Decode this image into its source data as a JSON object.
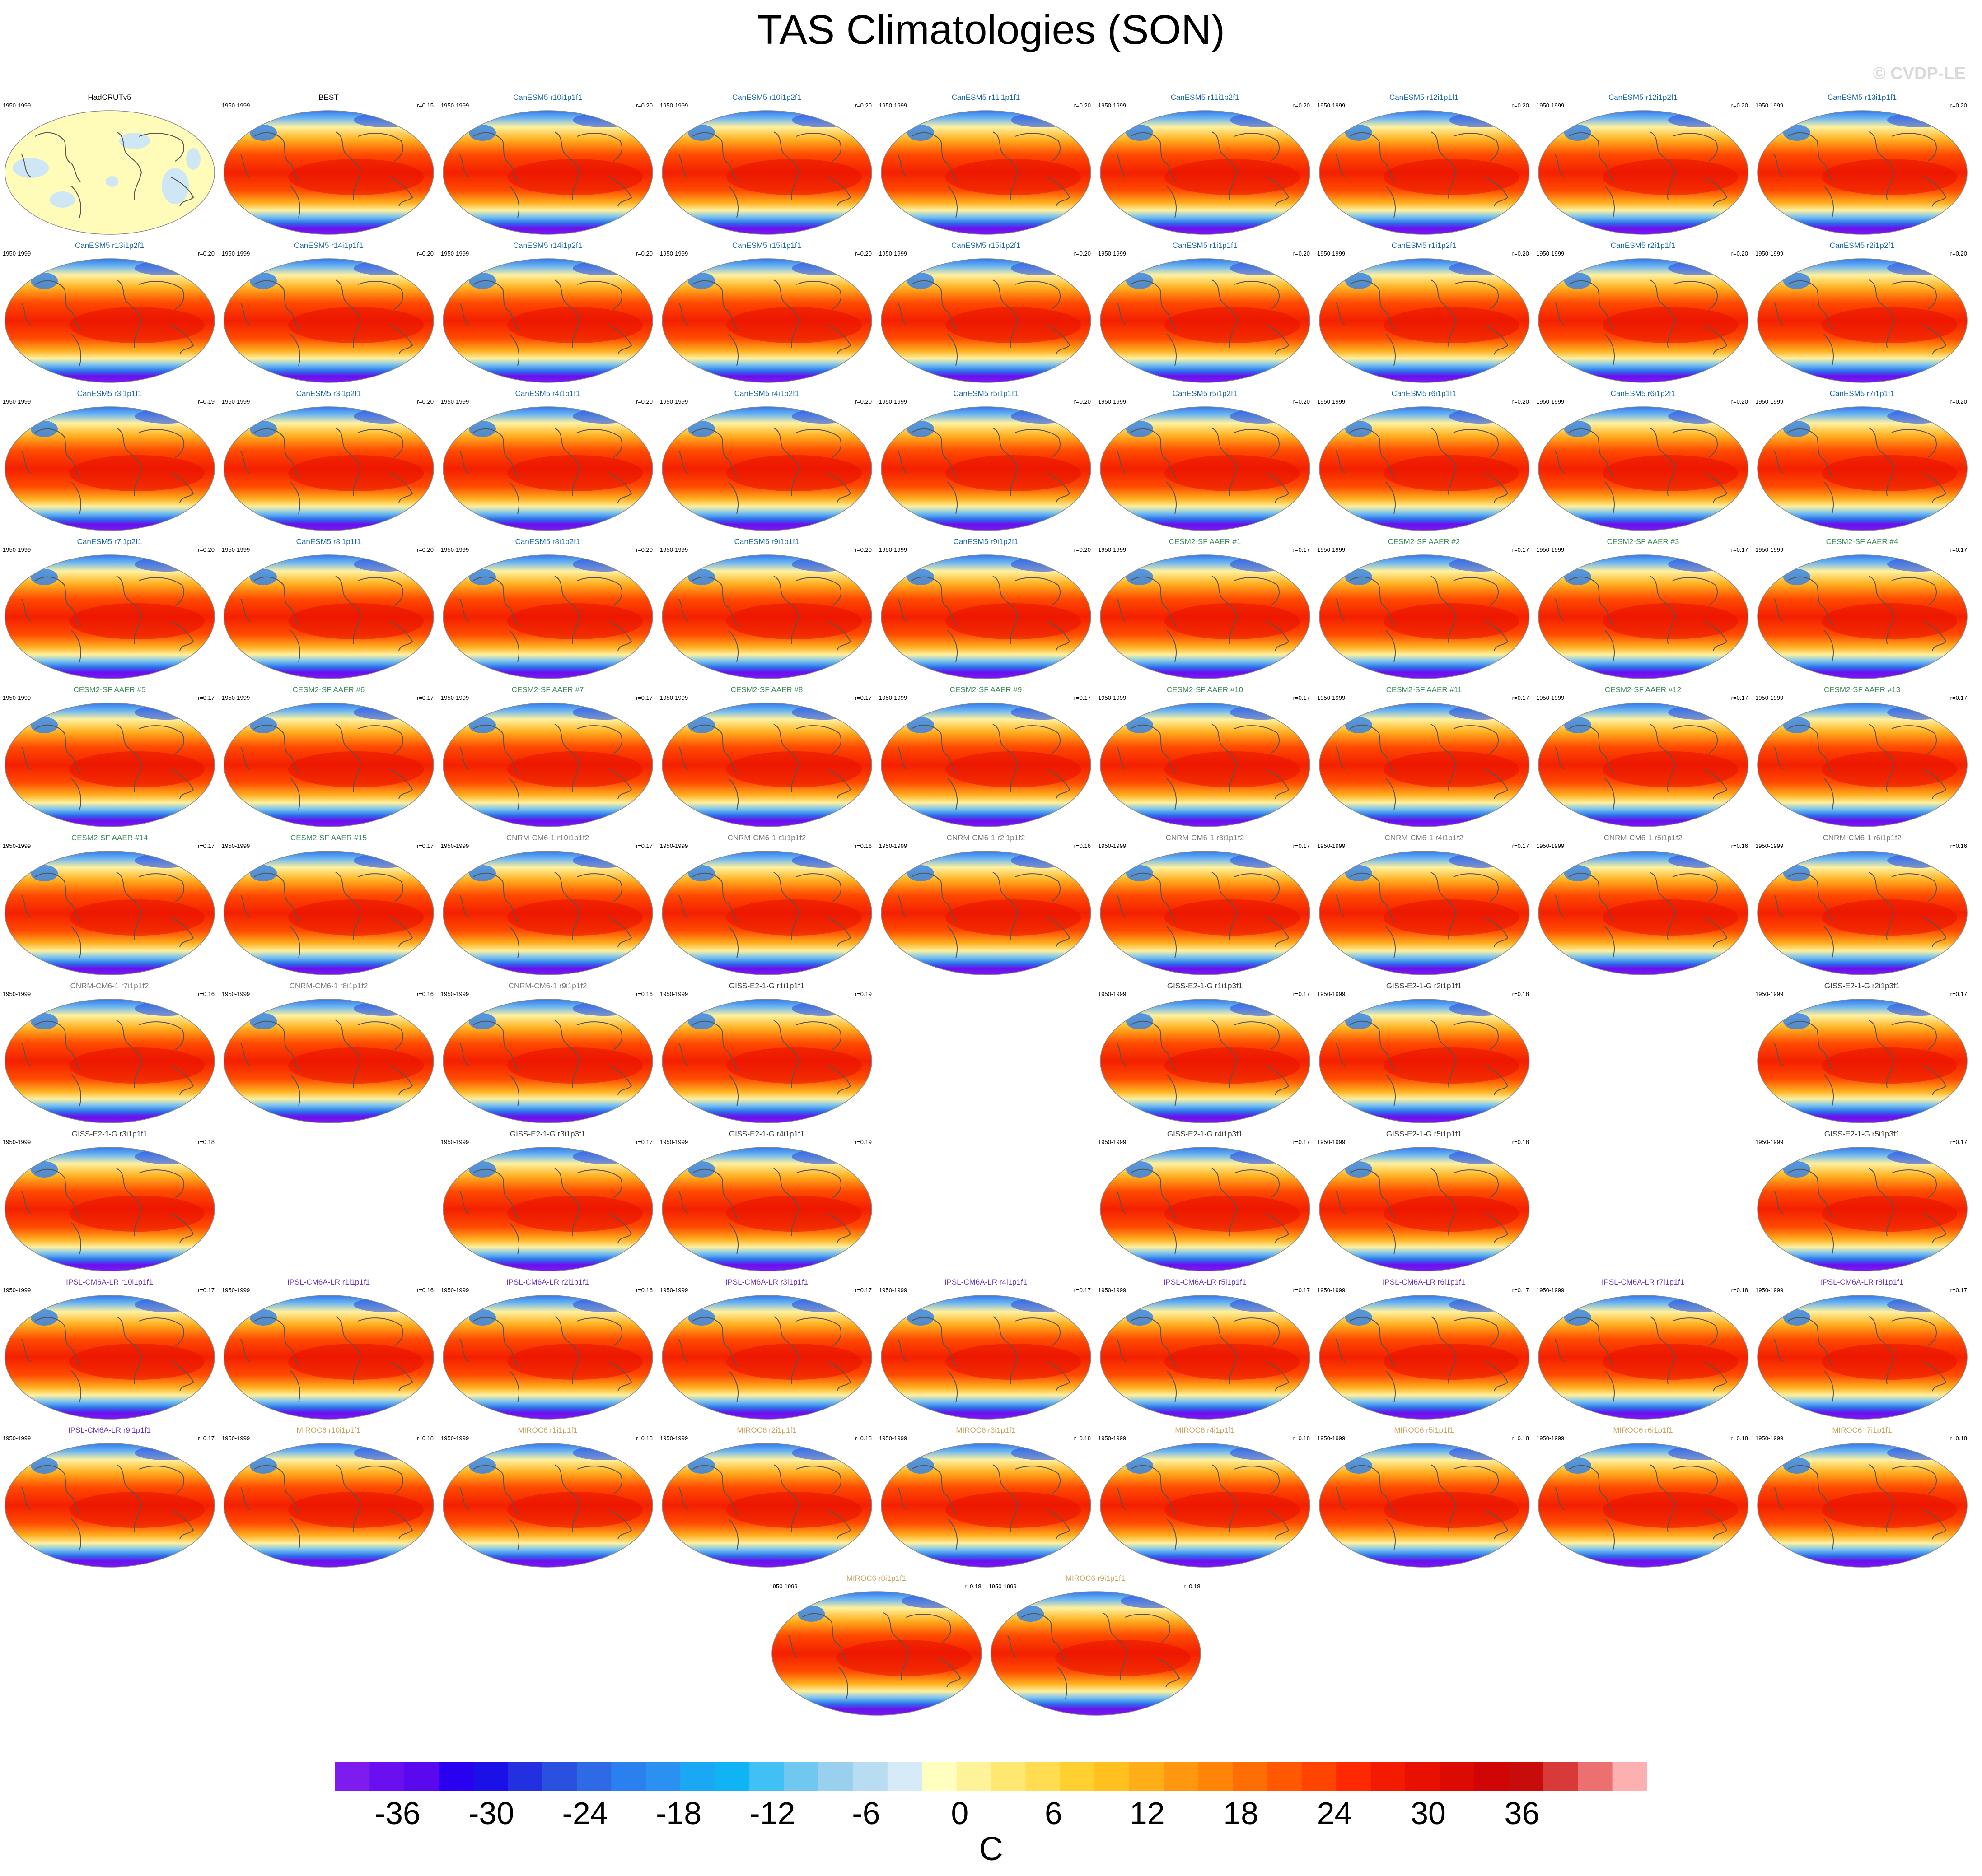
{
  "title": "TAS Climatologies (SON)",
  "watermark": "© CVDP-LE",
  "chart_data": {
    "type": "heatmap",
    "title": "TAS Climatologies (SON)",
    "projection": "robinson",
    "season": "SON",
    "period_label": "1950-1999",
    "panels": [
      {
        "name": "HadCRUTv5",
        "period": "1950-1999",
        "r": "",
        "group": "obs"
      },
      {
        "name": "BEST",
        "period": "1950-1999",
        "r": "r=0.15",
        "group": "obs"
      },
      {
        "name": "CanESM5 r10i1p1f1",
        "period": "1950-1999",
        "r": "r=0.20",
        "group": "CanESM5"
      },
      {
        "name": "CanESM5 r10i1p2f1",
        "period": "1950-1999",
        "r": "r=0.20",
        "group": "CanESM5"
      },
      {
        "name": "CanESM5 r11i1p1f1",
        "period": "1950-1999",
        "r": "r=0.20",
        "group": "CanESM5"
      },
      {
        "name": "CanESM5 r11i1p2f1",
        "period": "1950-1999",
        "r": "r=0.20",
        "group": "CanESM5"
      },
      {
        "name": "CanESM5 r12i1p1f1",
        "period": "1950-1999",
        "r": "r=0.20",
        "group": "CanESM5"
      },
      {
        "name": "CanESM5 r12i1p2f1",
        "period": "1950-1999",
        "r": "r=0.20",
        "group": "CanESM5"
      },
      {
        "name": "CanESM5 r13i1p1f1",
        "period": "1950-1999",
        "r": "r=0.20",
        "group": "CanESM5"
      },
      {
        "name": "CanESM5 r13i1p2f1",
        "period": "1950-1999",
        "r": "r=0.20",
        "group": "CanESM5"
      },
      {
        "name": "CanESM5 r14i1p1f1",
        "period": "1950-1999",
        "r": "r=0.20",
        "group": "CanESM5"
      },
      {
        "name": "CanESM5 r14i1p2f1",
        "period": "1950-1999",
        "r": "r=0.20",
        "group": "CanESM5"
      },
      {
        "name": "CanESM5 r15i1p1f1",
        "period": "1950-1999",
        "r": "r=0.20",
        "group": "CanESM5"
      },
      {
        "name": "CanESM5 r15i1p2f1",
        "period": "1950-1999",
        "r": "r=0.20",
        "group": "CanESM5"
      },
      {
        "name": "CanESM5 r1i1p1f1",
        "period": "1950-1999",
        "r": "r=0.20",
        "group": "CanESM5"
      },
      {
        "name": "CanESM5 r1i1p2f1",
        "period": "1950-1999",
        "r": "r=0.20",
        "group": "CanESM5"
      },
      {
        "name": "CanESM5 r2i1p1f1",
        "period": "1950-1999",
        "r": "r=0.20",
        "group": "CanESM5"
      },
      {
        "name": "CanESM5 r2i1p2f1",
        "period": "1950-1999",
        "r": "r=0.20",
        "group": "CanESM5"
      },
      {
        "name": "CanESM5 r3i1p1f1",
        "period": "1950-1999",
        "r": "r=0.19",
        "group": "CanESM5"
      },
      {
        "name": "CanESM5 r3i1p2f1",
        "period": "1950-1999",
        "r": "r=0.20",
        "group": "CanESM5"
      },
      {
        "name": "CanESM5 r4i1p1f1",
        "period": "1950-1999",
        "r": "r=0.20",
        "group": "CanESM5"
      },
      {
        "name": "CanESM5 r4i1p2f1",
        "period": "1950-1999",
        "r": "r=0.20",
        "group": "CanESM5"
      },
      {
        "name": "CanESM5 r5i1p1f1",
        "period": "1950-1999",
        "r": "r=0.20",
        "group": "CanESM5"
      },
      {
        "name": "CanESM5 r5i1p2f1",
        "period": "1950-1999",
        "r": "r=0.20",
        "group": "CanESM5"
      },
      {
        "name": "CanESM5 r6i1p1f1",
        "period": "1950-1999",
        "r": "r=0.20",
        "group": "CanESM5"
      },
      {
        "name": "CanESM5 r6i1p2f1",
        "period": "1950-1999",
        "r": "r=0.20",
        "group": "CanESM5"
      },
      {
        "name": "CanESM5 r7i1p1f1",
        "period": "1950-1999",
        "r": "r=0.20",
        "group": "CanESM5"
      },
      {
        "name": "CanESM5 r7i1p2f1",
        "period": "1950-1999",
        "r": "r=0.20",
        "group": "CanESM5"
      },
      {
        "name": "CanESM5 r8i1p1f1",
        "period": "1950-1999",
        "r": "r=0.20",
        "group": "CanESM5"
      },
      {
        "name": "CanESM5 r8i1p2f1",
        "period": "1950-1999",
        "r": "r=0.20",
        "group": "CanESM5"
      },
      {
        "name": "CanESM5 r9i1p1f1",
        "period": "1950-1999",
        "r": "r=0.20",
        "group": "CanESM5"
      },
      {
        "name": "CanESM5 r9i1p2f1",
        "period": "1950-1999",
        "r": "r=0.20",
        "group": "CanESM5"
      },
      {
        "name": "CESM2-SF AAER #1",
        "period": "1950-1999",
        "r": "r=0.17",
        "group": "CESM2"
      },
      {
        "name": "CESM2-SF AAER #2",
        "period": "1950-1999",
        "r": "r=0.17",
        "group": "CESM2"
      },
      {
        "name": "CESM2-SF AAER #3",
        "period": "1950-1999",
        "r": "r=0.17",
        "group": "CESM2"
      },
      {
        "name": "CESM2-SF AAER #4",
        "period": "1950-1999",
        "r": "r=0.17",
        "group": "CESM2"
      },
      {
        "name": "CESM2-SF AAER #5",
        "period": "1950-1999",
        "r": "r=0.17",
        "group": "CESM2"
      },
      {
        "name": "CESM2-SF AAER #6",
        "period": "1950-1999",
        "r": "r=0.17",
        "group": "CESM2"
      },
      {
        "name": "CESM2-SF AAER #7",
        "period": "1950-1999",
        "r": "r=0.17",
        "group": "CESM2"
      },
      {
        "name": "CESM2-SF AAER #8",
        "period": "1950-1999",
        "r": "r=0.17",
        "group": "CESM2"
      },
      {
        "name": "CESM2-SF AAER #9",
        "period": "1950-1999",
        "r": "r=0.17",
        "group": "CESM2"
      },
      {
        "name": "CESM2-SF AAER #10",
        "period": "1950-1999",
        "r": "r=0.17",
        "group": "CESM2"
      },
      {
        "name": "CESM2-SF AAER #11",
        "period": "1950-1999",
        "r": "r=0.17",
        "group": "CESM2"
      },
      {
        "name": "CESM2-SF AAER #12",
        "period": "1950-1999",
        "r": "r=0.17",
        "group": "CESM2"
      },
      {
        "name": "CESM2-SF AAER #13",
        "period": "1950-1999",
        "r": "r=0.17",
        "group": "CESM2"
      },
      {
        "name": "CESM2-SF AAER #14",
        "period": "1950-1999",
        "r": "r=0.17",
        "group": "CESM2"
      },
      {
        "name": "CESM2-SF AAER #15",
        "period": "1950-1999",
        "r": "r=0.17",
        "group": "CESM2"
      },
      {
        "name": "CNRM-CM6-1 r10i1p1f2",
        "period": "1950-1999",
        "r": "r=0.17",
        "group": "CNRM"
      },
      {
        "name": "CNRM-CM6-1 r1i1p1f2",
        "period": "1950-1999",
        "r": "r=0.16",
        "group": "CNRM"
      },
      {
        "name": "CNRM-CM6-1 r2i1p1f2",
        "period": "1950-1999",
        "r": "r=0.16",
        "group": "CNRM"
      },
      {
        "name": "CNRM-CM6-1 r3i1p1f2",
        "period": "1950-1999",
        "r": "r=0.17",
        "group": "CNRM"
      },
      {
        "name": "CNRM-CM6-1 r4i1p1f2",
        "period": "1950-1999",
        "r": "r=0.17",
        "group": "CNRM"
      },
      {
        "name": "CNRM-CM6-1 r5i1p1f2",
        "period": "1950-1999",
        "r": "r=0.16",
        "group": "CNRM"
      },
      {
        "name": "CNRM-CM6-1 r6i1p1f2",
        "period": "1950-1999",
        "r": "r=0.16",
        "group": "CNRM"
      },
      {
        "name": "CNRM-CM6-1 r7i1p1f2",
        "period": "1950-1999",
        "r": "r=0.16",
        "group": "CNRM"
      },
      {
        "name": "CNRM-CM6-1 r8i1p1f2",
        "period": "1950-1999",
        "r": "r=0.16",
        "group": "CNRM"
      },
      {
        "name": "CNRM-CM6-1 r9i1p1f2",
        "period": "1950-1999",
        "r": "r=0.16",
        "group": "CNRM"
      },
      {
        "name": "GISS-E2-1-G r1i1p1f1",
        "period": "1950-1999",
        "r": "r=0.19",
        "group": "GISS"
      },
      {
        "name": "GISS-E2-1-G r1i1p3f1",
        "period": "1950-1999",
        "r": "r=0.17",
        "group": "GISS"
      },
      {
        "name": "GISS-E2-1-G r2i1p1f1",
        "period": "1950-1999",
        "r": "r=0.18",
        "group": "GISS"
      },
      {
        "name": "GISS-E2-1-G r2i1p3f1",
        "period": "1950-1999",
        "r": "r=0.17",
        "group": "GISS"
      },
      {
        "name": "GISS-E2-1-G r3i1p1f1",
        "period": "1950-1999",
        "r": "r=0.18",
        "group": "GISS"
      },
      {
        "name": "GISS-E2-1-G r3i1p3f1",
        "period": "1950-1999",
        "r": "r=0.17",
        "group": "GISS"
      },
      {
        "name": "GISS-E2-1-G r4i1p1f1",
        "period": "1950-1999",
        "r": "r=0.19",
        "group": "GISS"
      },
      {
        "name": "GISS-E2-1-G r4i1p3f1",
        "period": "1950-1999",
        "r": "r=0.17",
        "group": "GISS"
      },
      {
        "name": "GISS-E2-1-G r5i1p1f1",
        "period": "1950-1999",
        "r": "r=0.18",
        "group": "GISS"
      },
      {
        "name": "GISS-E2-1-G r5i1p3f1",
        "period": "1950-1999",
        "r": "r=0.17",
        "group": "GISS"
      },
      {
        "name": "IPSL-CM6A-LR r10i1p1f1",
        "period": "1950-1999",
        "r": "r=0.17",
        "group": "IPSL"
      },
      {
        "name": "IPSL-CM6A-LR r1i1p1f1",
        "period": "1950-1999",
        "r": "r=0.16",
        "group": "IPSL"
      },
      {
        "name": "IPSL-CM6A-LR r2i1p1f1",
        "period": "1950-1999",
        "r": "r=0.16",
        "group": "IPSL"
      },
      {
        "name": "IPSL-CM6A-LR r3i1p1f1",
        "period": "1950-1999",
        "r": "r=0.17",
        "group": "IPSL"
      },
      {
        "name": "IPSL-CM6A-LR r4i1p1f1",
        "period": "1950-1999",
        "r": "r=0.17",
        "group": "IPSL"
      },
      {
        "name": "IPSL-CM6A-LR r5i1p1f1",
        "period": "1950-1999",
        "r": "r=0.17",
        "group": "IPSL"
      },
      {
        "name": "IPSL-CM6A-LR r6i1p1f1",
        "period": "1950-1999",
        "r": "r=0.17",
        "group": "IPSL"
      },
      {
        "name": "IPSL-CM6A-LR r7i1p1f1",
        "period": "1950-1999",
        "r": "r=0.18",
        "group": "IPSL"
      },
      {
        "name": "IPSL-CM6A-LR r8i1p1f1",
        "period": "1950-1999",
        "r": "r=0.17",
        "group": "IPSL"
      },
      {
        "name": "IPSL-CM6A-LR r9i1p1f1",
        "period": "1950-1999",
        "r": "r=0.17",
        "group": "IPSL"
      },
      {
        "name": "MIROC6 r10i1p1f1",
        "period": "1950-1999",
        "r": "r=0.18",
        "group": "MIROC"
      },
      {
        "name": "MIROC6 r1i1p1f1",
        "period": "1950-1999",
        "r": "r=0.18",
        "group": "MIROC"
      },
      {
        "name": "MIROC6 r2i1p1f1",
        "period": "1950-1999",
        "r": "r=0.18",
        "group": "MIROC"
      },
      {
        "name": "MIROC6 r3i1p1f1",
        "period": "1950-1999",
        "r": "r=0.18",
        "group": "MIROC"
      },
      {
        "name": "MIROC6 r4i1p1f1",
        "period": "1950-1999",
        "r": "r=0.18",
        "group": "MIROC"
      },
      {
        "name": "MIROC6 r5i1p1f1",
        "period": "1950-1999",
        "r": "r=0.18",
        "group": "MIROC"
      },
      {
        "name": "MIROC6 r6i1p1f1",
        "period": "1950-1999",
        "r": "r=0.18",
        "group": "MIROC"
      },
      {
        "name": "MIROC6 r7i1p1f1",
        "period": "1950-1999",
        "r": "r=0.18",
        "group": "MIROC"
      },
      {
        "name": "MIROC6 r8i1p1f1",
        "period": "1950-1999",
        "r": "r=0.18",
        "group": "MIROC"
      },
      {
        "name": "MIROC6 r9i1p1f1",
        "period": "1950-1999",
        "r": "r=0.18",
        "group": "MIROC"
      }
    ],
    "group_colors": {
      "obs": "#000000",
      "CanESM5": "#1565a8",
      "CESM2": "#3c8a5a",
      "CNRM": "#7a7a7a",
      "GISS": "#3a3a3a",
      "IPSL": "#6a34c8",
      "MIROC": "#c8a05a"
    },
    "colorbar": {
      "units": "C",
      "ticks": [
        "-36",
        "-30",
        "-24",
        "-18",
        "-12",
        "-6",
        "0",
        "6",
        "12",
        "18",
        "24",
        "30",
        "36"
      ],
      "tick_values": [
        -36,
        -30,
        -24,
        -18,
        -12,
        -6,
        0,
        6,
        12,
        18,
        24,
        30,
        36
      ],
      "min": -40,
      "max": 44,
      "colors": [
        "#7e1cf0",
        "#6a10f0",
        "#5a08ee",
        "#2a00f0",
        "#1b10e8",
        "#2230e0",
        "#2a50e0",
        "#2e6ae6",
        "#2a80ee",
        "#2a90f2",
        "#1aa8f5",
        "#10b4f5",
        "#40c0f5",
        "#70c8f0",
        "#98d0ee",
        "#b8dcf2",
        "#d6eaf8",
        "#ffffc0",
        "#fff39a",
        "#ffe872",
        "#ffdc50",
        "#ffd030",
        "#ffc020",
        "#ffae18",
        "#ff9810",
        "#ff8408",
        "#ff6e04",
        "#ff5800",
        "#ff4400",
        "#ff2800",
        "#f41a00",
        "#e81000",
        "#dc0a00",
        "#d00606",
        "#c80c0c",
        "#d83a3a",
        "#ec7070",
        "#fcb0b0"
      ]
    }
  }
}
